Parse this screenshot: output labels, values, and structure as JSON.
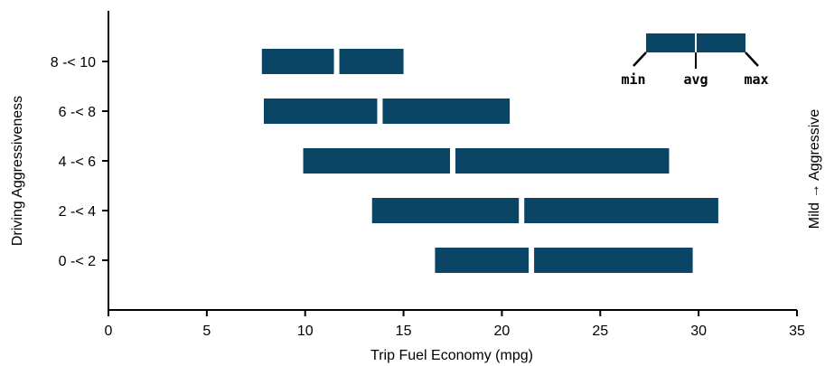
{
  "chart_data": {
    "type": "bar",
    "orientation": "horizontal",
    "style": "range-bar (min-avg-max)",
    "xlabel": "Trip Fuel Economy (mpg)",
    "ylabel": "Driving Aggressiveness",
    "right_label": "Mild → Aggressive",
    "xlim": [
      0,
      35
    ],
    "xticks": [
      0,
      5,
      10,
      15,
      20,
      25,
      30,
      35
    ],
    "grid": false,
    "legend_position": "top-right",
    "legend_labels": {
      "min": "min",
      "avg": "avg",
      "max": "max"
    },
    "bar_color": "#0b4566",
    "categories": [
      "0 -< 2",
      "2 -< 4",
      "4 -< 6",
      "6 -< 8",
      "8 -< 10"
    ],
    "ranges": [
      {
        "category": "0 -< 2",
        "min": 16.6,
        "avg": 21.5,
        "max": 29.7
      },
      {
        "category": "2 -< 4",
        "min": 13.4,
        "avg": 21.0,
        "max": 31.0
      },
      {
        "category": "4 -< 6",
        "min": 9.9,
        "avg": 17.5,
        "max": 28.5
      },
      {
        "category": "6 -< 8",
        "min": 7.9,
        "avg": 13.8,
        "max": 20.4
      },
      {
        "category": "8 -< 10",
        "min": 7.8,
        "avg": 11.6,
        "max": 15.0
      }
    ]
  }
}
